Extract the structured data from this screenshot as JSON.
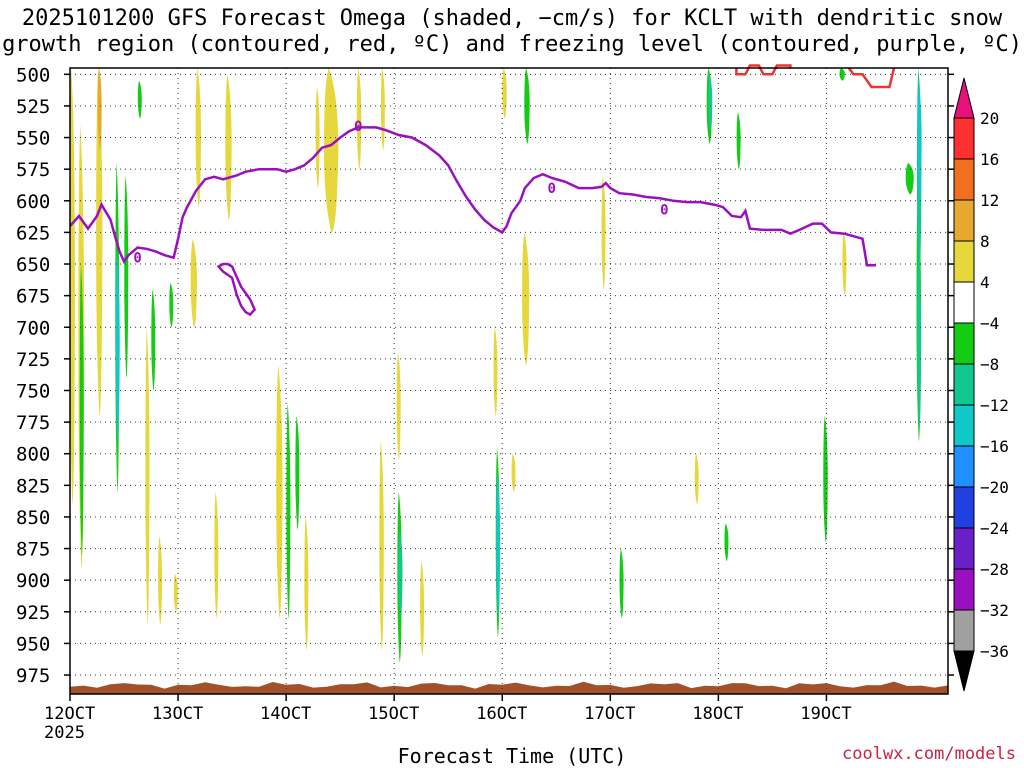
{
  "chart_data": {
    "type": "heatmap",
    "title_line1": "2025101200 GFS Forecast Omega (shaded, −cm/s) for KCLT with dendritic snow",
    "title_line2": "growth region (contoured, red, ºC) and freezing level (contoured, purple, ºC)",
    "xlabel": "Forecast Time (UTC)",
    "credit": "coolwx.com/models",
    "x_range": [
      0,
      195
    ],
    "x_ticks": [
      {
        "x": 0,
        "label": "12OCT",
        "sub": "2025"
      },
      {
        "x": 24,
        "label": "13OCT",
        "sub": ""
      },
      {
        "x": 48,
        "label": "14OCT",
        "sub": ""
      },
      {
        "x": 72,
        "label": "15OCT",
        "sub": ""
      },
      {
        "x": 96,
        "label": "16OCT",
        "sub": ""
      },
      {
        "x": 120,
        "label": "17OCT",
        "sub": ""
      },
      {
        "x": 144,
        "label": "18OCT",
        "sub": ""
      },
      {
        "x": 168,
        "label": "19OCT",
        "sub": ""
      }
    ],
    "y_range": [
      495,
      990
    ],
    "y_ticks": [
      500,
      525,
      550,
      575,
      600,
      625,
      650,
      675,
      700,
      725,
      750,
      775,
      800,
      825,
      850,
      875,
      900,
      925,
      950,
      975
    ],
    "grid": true,
    "colorbar": {
      "labels": [
        "20",
        "16",
        "12",
        "8",
        "4",
        "−4",
        "−8",
        "−12",
        "−16",
        "−20",
        "−24",
        "−28",
        "−32",
        "−36"
      ],
      "colors": [
        "#ff3030",
        "#f07020",
        "#e8a830",
        "#e6d83c",
        "#ffffff",
        "#14cc14",
        "#10c890",
        "#10c8c8",
        "#1e90ff",
        "#2040e0",
        "#6a20c8",
        "#9a10c0",
        "#a0a0a0"
      ],
      "top_color": "#e8107a",
      "bottom_color": "#000000"
    },
    "terrain_color": "#a0522d",
    "freezing_level": {
      "color": "#9a10c0",
      "label": "0",
      "points": [
        [
          0,
          620
        ],
        [
          2,
          612
        ],
        [
          4,
          622
        ],
        [
          6,
          612
        ],
        [
          7,
          603
        ],
        [
          9,
          615
        ],
        [
          10,
          628
        ],
        [
          11,
          640
        ],
        [
          12,
          648
        ],
        [
          13,
          643
        ],
        [
          15,
          637
        ],
        [
          17,
          638
        ],
        [
          19,
          640
        ],
        [
          21,
          643
        ],
        [
          23,
          645
        ],
        [
          24,
          630
        ],
        [
          25,
          613
        ],
        [
          26,
          605
        ],
        [
          28,
          592
        ],
        [
          30,
          583
        ],
        [
          32,
          581
        ],
        [
          34,
          583
        ],
        [
          37,
          580
        ],
        [
          39,
          577
        ],
        [
          42,
          575
        ],
        [
          46,
          575
        ],
        [
          48,
          577
        ],
        [
          50,
          575
        ],
        [
          52,
          572
        ],
        [
          54,
          566
        ],
        [
          56,
          558
        ],
        [
          58,
          556
        ],
        [
          60,
          550
        ],
        [
          62,
          545
        ],
        [
          64,
          542
        ],
        [
          66,
          542
        ],
        [
          68,
          542
        ],
        [
          70,
          544
        ],
        [
          73,
          548
        ],
        [
          76,
          550
        ],
        [
          79,
          556
        ],
        [
          82,
          564
        ],
        [
          84,
          572
        ],
        [
          86,
          585
        ],
        [
          88,
          597
        ],
        [
          90,
          607
        ],
        [
          92,
          615
        ],
        [
          94,
          621
        ],
        [
          96,
          625
        ],
        [
          97,
          620
        ],
        [
          98,
          610
        ],
        [
          100,
          600
        ],
        [
          101,
          590
        ],
        [
          103,
          582
        ],
        [
          105,
          579
        ],
        [
          107,
          582
        ],
        [
          110,
          585
        ],
        [
          113,
          590
        ],
        [
          116,
          590
        ],
        [
          118,
          589
        ],
        [
          119,
          586
        ],
        [
          120,
          590
        ],
        [
          122,
          594
        ],
        [
          125,
          595
        ],
        [
          128,
          597
        ],
        [
          131,
          598
        ],
        [
          134,
          600
        ],
        [
          137,
          601
        ],
        [
          140,
          601
        ],
        [
          143,
          603
        ],
        [
          145,
          605
        ],
        [
          147,
          612
        ],
        [
          149,
          613
        ],
        [
          150,
          608
        ],
        [
          151,
          622
        ],
        [
          154,
          623
        ],
        [
          158,
          623
        ],
        [
          160,
          626
        ],
        [
          162,
          623
        ],
        [
          165,
          618
        ],
        [
          167,
          618
        ],
        [
          169,
          625
        ],
        [
          172,
          626
        ],
        [
          174,
          628
        ],
        [
          176,
          630
        ],
        [
          177,
          651
        ],
        [
          179,
          651
        ]
      ]
    },
    "freezing_level_loop": [
      [
        33,
        652
      ],
      [
        34,
        656
      ],
      [
        36,
        661
      ],
      [
        37,
        674
      ],
      [
        38,
        683
      ],
      [
        39,
        688
      ],
      [
        40,
        690
      ],
      [
        41,
        686
      ],
      [
        40,
        678
      ],
      [
        39,
        673
      ],
      [
        38,
        668
      ],
      [
        37,
        660
      ],
      [
        36,
        652
      ],
      [
        35,
        650
      ],
      [
        34,
        650
      ]
    ],
    "dgz_contour": {
      "color": "#ee3333",
      "points": [
        [
          148,
          495
        ],
        [
          148,
          500
        ],
        [
          150,
          500
        ],
        [
          151,
          493
        ],
        [
          153,
          493
        ],
        [
          154,
          500
        ],
        [
          156,
          500
        ],
        [
          157,
          493
        ],
        [
          160,
          493
        ],
        [
          160,
          495
        ]
      ],
      "points2": [
        [
          173,
          495
        ],
        [
          174,
          500
        ],
        [
          176,
          500
        ],
        [
          178,
          510
        ],
        [
          182,
          510
        ],
        [
          183,
          495
        ]
      ]
    },
    "shaded_regions": [
      {
        "x": 0.5,
        "p1": 495,
        "p2": 840,
        "w": 1.2,
        "color": "#e6d83c"
      },
      {
        "x": 2.5,
        "p1": 540,
        "p2": 890,
        "w": 1.3,
        "color": "#e6d83c"
      },
      {
        "x": 2.6,
        "p1": 650,
        "p2": 880,
        "w": 0.6,
        "color": "#14cc14"
      },
      {
        "x": 6.5,
        "p1": 495,
        "p2": 770,
        "w": 1.4,
        "color": "#e6d83c"
      },
      {
        "x": 6.6,
        "p1": 495,
        "p2": 560,
        "w": 0.4,
        "color": "#e8a830"
      },
      {
        "x": 10.5,
        "p1": 570,
        "p2": 830,
        "w": 0.8,
        "color": "#14cc14"
      },
      {
        "x": 10.6,
        "p1": 640,
        "p2": 790,
        "w": 0.3,
        "color": "#10c8c8"
      },
      {
        "x": 12.5,
        "p1": 580,
        "p2": 740,
        "w": 0.4,
        "color": "#14cc14"
      },
      {
        "x": 15.5,
        "p1": 505,
        "p2": 535,
        "w": 0.3,
        "color": "#14cc14"
      },
      {
        "x": 17.2,
        "p1": 700,
        "p2": 935,
        "w": 0.9,
        "color": "#e6d83c"
      },
      {
        "x": 18.5,
        "p1": 670,
        "p2": 750,
        "w": 0.5,
        "color": "#14cc14"
      },
      {
        "x": 20.0,
        "p1": 865,
        "p2": 935,
        "w": 0.8,
        "color": "#e6d83c"
      },
      {
        "x": 23.5,
        "p1": 895,
        "p2": 925,
        "w": 0.4,
        "color": "#e6d83c"
      },
      {
        "x": 22.5,
        "p1": 665,
        "p2": 700,
        "w": 0.4,
        "color": "#14cc14"
      },
      {
        "x": 28.5,
        "p1": 495,
        "p2": 605,
        "w": 1.2,
        "color": "#e6d83c"
      },
      {
        "x": 27.5,
        "p1": 630,
        "p2": 700,
        "w": 1.4,
        "color": "#e6d83c"
      },
      {
        "x": 35.2,
        "p1": 500,
        "p2": 615,
        "w": 1.4,
        "color": "#e6d83c"
      },
      {
        "x": 32.5,
        "p1": 830,
        "p2": 930,
        "w": 0.8,
        "color": "#e6d83c"
      },
      {
        "x": 46.5,
        "p1": 730,
        "p2": 930,
        "w": 1.4,
        "color": "#e6d83c"
      },
      {
        "x": 48.5,
        "p1": 760,
        "p2": 930,
        "w": 0.8,
        "color": "#14cc14"
      },
      {
        "x": 50.5,
        "p1": 770,
        "p2": 860,
        "w": 0.4,
        "color": "#14cc14"
      },
      {
        "x": 55.0,
        "p1": 510,
        "p2": 590,
        "w": 0.7,
        "color": "#e6d83c"
      },
      {
        "x": 58.0,
        "p1": 495,
        "p2": 625,
        "w": 3.2,
        "color": "#e6d83c"
      },
      {
        "x": 64.2,
        "p1": 495,
        "p2": 575,
        "w": 1.0,
        "color": "#e6d83c"
      },
      {
        "x": 69.5,
        "p1": 495,
        "p2": 560,
        "w": 0.4,
        "color": "#e6d83c"
      },
      {
        "x": 52.5,
        "p1": 850,
        "p2": 955,
        "w": 0.4,
        "color": "#e6d83c"
      },
      {
        "x": 69.2,
        "p1": 790,
        "p2": 955,
        "w": 1.0,
        "color": "#e6d83c"
      },
      {
        "x": 73.2,
        "p1": 830,
        "p2": 965,
        "w": 1.0,
        "color": "#14cc14"
      },
      {
        "x": 73.4,
        "p1": 860,
        "p2": 930,
        "w": 0.4,
        "color": "#10c890"
      },
      {
        "x": 73.0,
        "p1": 720,
        "p2": 805,
        "w": 0.8,
        "color": "#e6d83c"
      },
      {
        "x": 78.2,
        "p1": 885,
        "p2": 960,
        "w": 0.6,
        "color": "#e6d83c"
      },
      {
        "x": 95.0,
        "p1": 795,
        "p2": 945,
        "w": 0.8,
        "color": "#14cc14"
      },
      {
        "x": 95.1,
        "p1": 815,
        "p2": 930,
        "w": 0.3,
        "color": "#10c8c8"
      },
      {
        "x": 94.5,
        "p1": 700,
        "p2": 770,
        "w": 0.8,
        "color": "#e6d83c"
      },
      {
        "x": 96.5,
        "p1": 495,
        "p2": 535,
        "w": 1.0,
        "color": "#e6d83c"
      },
      {
        "x": 98.5,
        "p1": 800,
        "p2": 830,
        "w": 0.4,
        "color": "#e6d83c"
      },
      {
        "x": 101.5,
        "p1": 495,
        "p2": 555,
        "w": 1.2,
        "color": "#14cc14"
      },
      {
        "x": 101.2,
        "p1": 625,
        "p2": 730,
        "w": 1.6,
        "color": "#e6d83c"
      },
      {
        "x": 118.5,
        "p1": 580,
        "p2": 670,
        "w": 0.9,
        "color": "#e6d83c"
      },
      {
        "x": 122.5,
        "p1": 875,
        "p2": 930,
        "w": 0.9,
        "color": "#14cc14"
      },
      {
        "x": 142.0,
        "p1": 495,
        "p2": 555,
        "w": 1.2,
        "color": "#14cc14"
      },
      {
        "x": 142.2,
        "p1": 500,
        "p2": 545,
        "w": 0.5,
        "color": "#10c890"
      },
      {
        "x": 148.5,
        "p1": 530,
        "p2": 575,
        "w": 0.9,
        "color": "#14cc14"
      },
      {
        "x": 139.2,
        "p1": 800,
        "p2": 840,
        "w": 0.8,
        "color": "#e6d83c"
      },
      {
        "x": 145.8,
        "p1": 855,
        "p2": 885,
        "w": 0.8,
        "color": "#14cc14"
      },
      {
        "x": 167.8,
        "p1": 770,
        "p2": 870,
        "w": 1.0,
        "color": "#14cc14"
      },
      {
        "x": 171.5,
        "p1": 495,
        "p2": 505,
        "w": 1.2,
        "color": "#14cc14"
      },
      {
        "x": 172.0,
        "p1": 625,
        "p2": 675,
        "w": 0.9,
        "color": "#e6d83c"
      },
      {
        "x": 186.5,
        "p1": 570,
        "p2": 595,
        "w": 1.8,
        "color": "#14cc14"
      },
      {
        "x": 188.5,
        "p1": 590,
        "p2": 790,
        "w": 1.0,
        "color": "#14cc14"
      },
      {
        "x": 188.6,
        "p1": 640,
        "p2": 780,
        "w": 0.5,
        "color": "#10c890"
      },
      {
        "x": 188.6,
        "p1": 495,
        "p2": 660,
        "w": 1.0,
        "color": "#10c890"
      },
      {
        "x": 188.7,
        "p1": 510,
        "p2": 600,
        "w": 0.5,
        "color": "#10c8c8"
      }
    ]
  }
}
